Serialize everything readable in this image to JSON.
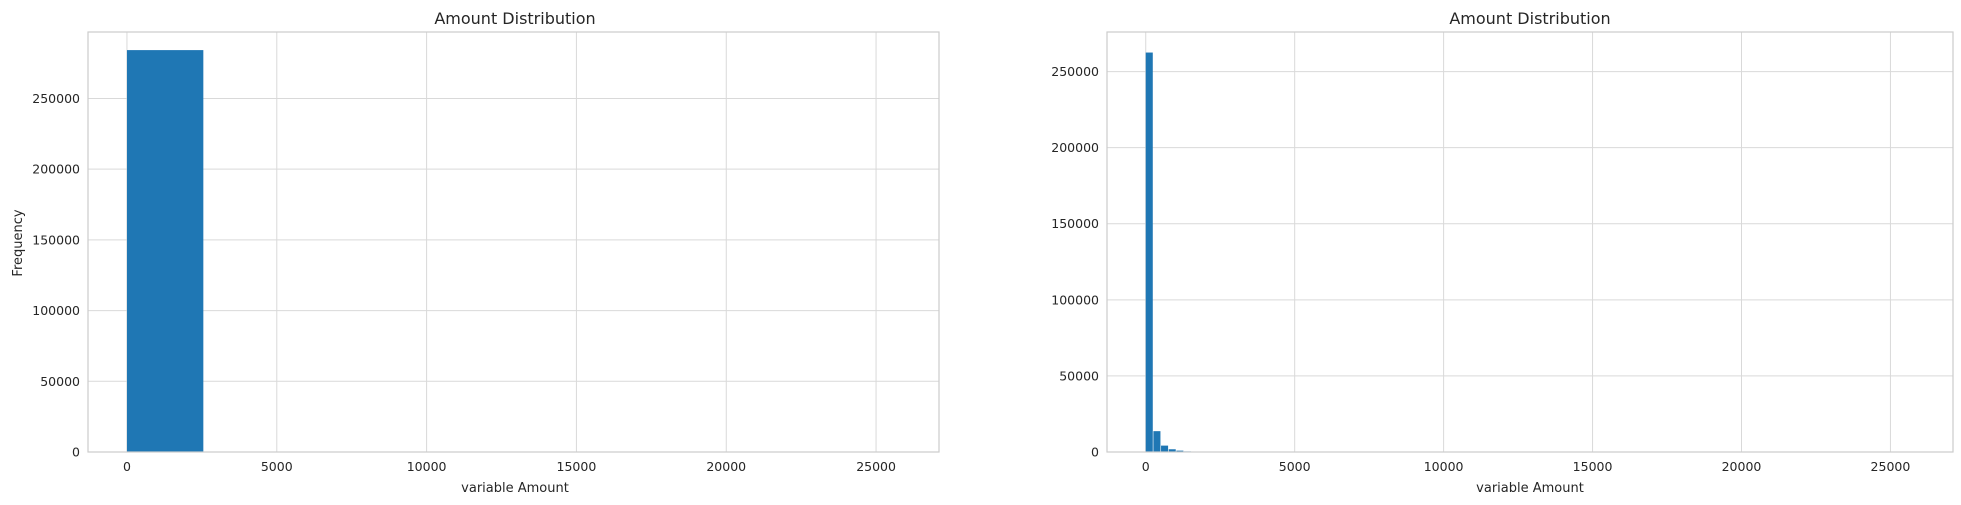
{
  "chart_data": [
    {
      "type": "bar",
      "subtype": "histogram",
      "title": "Amount Distribution",
      "xlabel": "variable Amount",
      "ylabel": "Frequency",
      "xlim": [
        -1300,
        27100
      ],
      "ylim": [
        0,
        297000
      ],
      "xticks": [
        0,
        5000,
        10000,
        15000,
        20000,
        25000
      ],
      "yticks": [
        0,
        50000,
        100000,
        150000,
        200000,
        250000
      ],
      "grid": true,
      "bar_color": "#1f77b4",
      "bins": [
        {
          "x0": 0,
          "x1": 2569,
          "count": 284200
        }
      ]
    },
    {
      "type": "bar",
      "subtype": "histogram",
      "title": "Amount Distribution",
      "xlabel": "variable Amount",
      "ylabel": "",
      "xlim": [
        -1300,
        27100
      ],
      "ylim": [
        0,
        276000
      ],
      "xticks": [
        0,
        5000,
        10000,
        15000,
        20000,
        25000
      ],
      "yticks": [
        0,
        50000,
        100000,
        150000,
        200000,
        250000
      ],
      "grid": true,
      "bar_color": "#1f77b4",
      "bins": [
        {
          "x0": 0,
          "x1": 257,
          "count": 262500
        },
        {
          "x0": 257,
          "x1": 514,
          "count": 13700
        },
        {
          "x0": 514,
          "x1": 771,
          "count": 4200
        },
        {
          "x0": 771,
          "x1": 1028,
          "count": 1800
        },
        {
          "x0": 1028,
          "x1": 1285,
          "count": 900
        },
        {
          "x0": 1285,
          "x1": 1542,
          "count": 400
        },
        {
          "x0": 1542,
          "x1": 1799,
          "count": 200
        },
        {
          "x0": 1799,
          "x1": 2056,
          "count": 100
        }
      ]
    }
  ]
}
